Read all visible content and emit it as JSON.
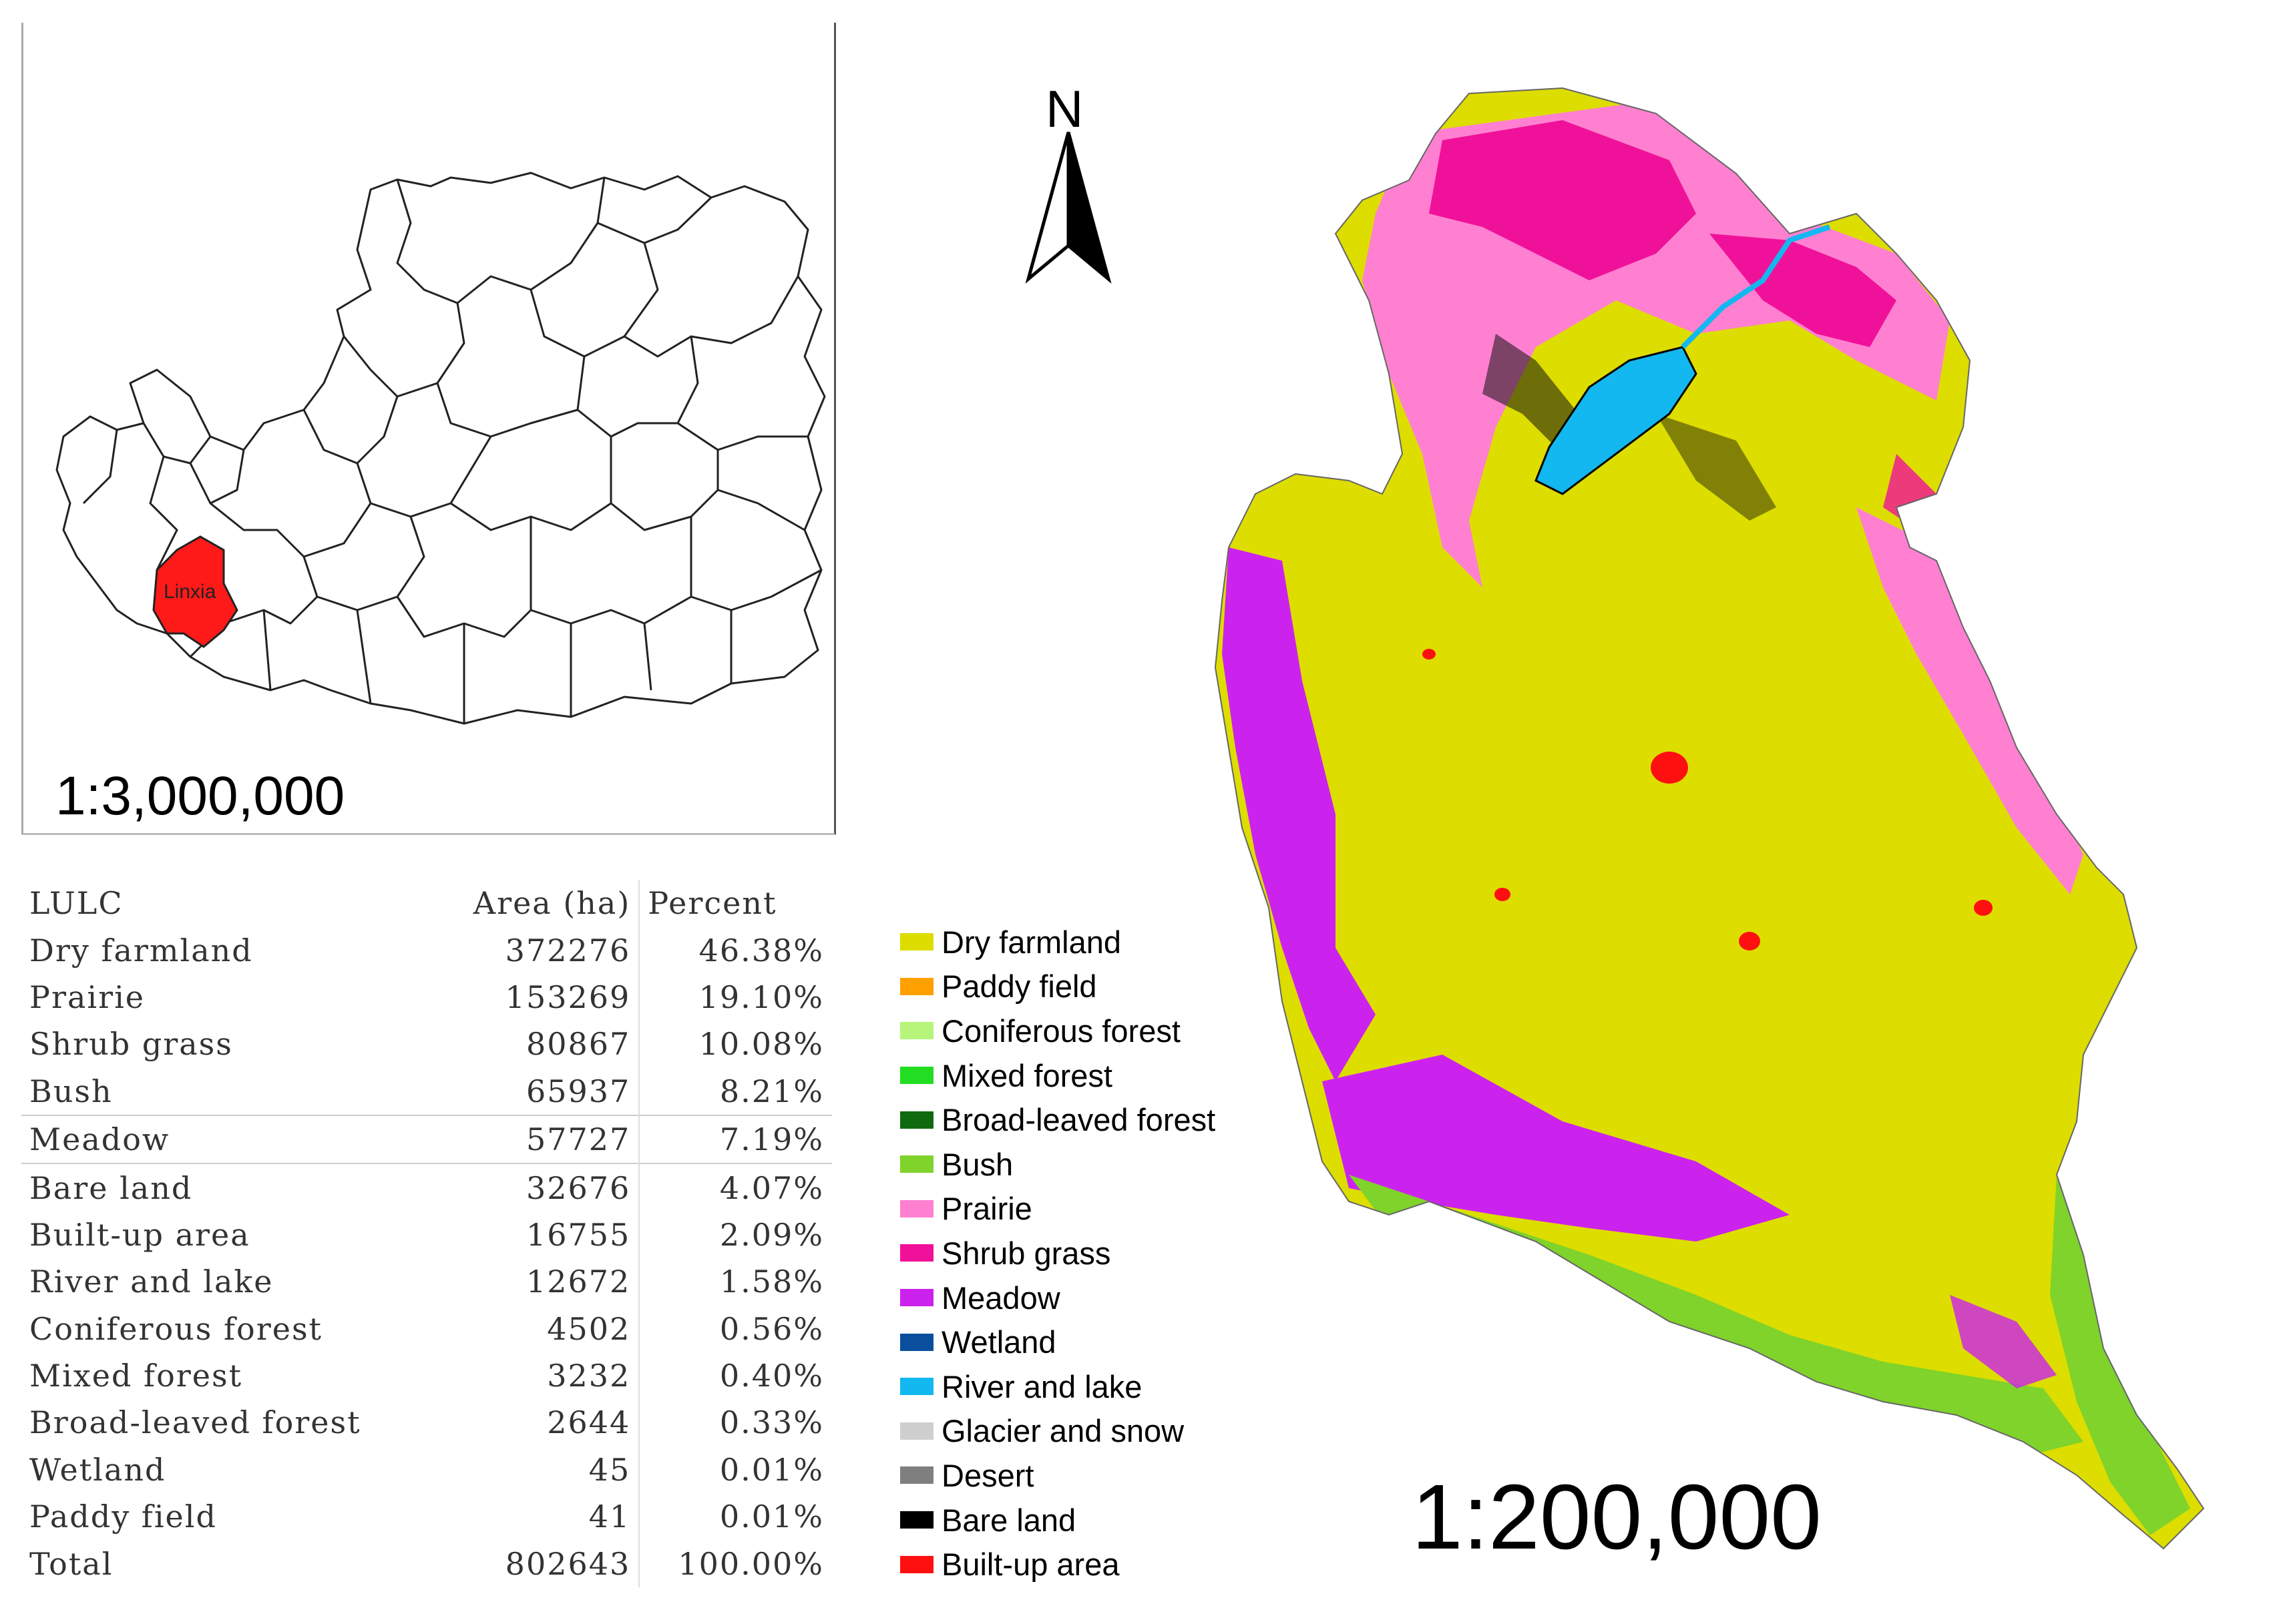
{
  "inset_map": {
    "scale": "1:3,000,000",
    "highlighted_region": "Linxia",
    "highlight_color": "#ff1a1a"
  },
  "north_arrow": {
    "label": "N"
  },
  "main_map": {
    "scale": "1:200,000"
  },
  "table": {
    "headers": [
      "LULC",
      "Area (ha)",
      "Percent"
    ],
    "rows": [
      [
        "Dry farmland",
        "372276",
        "46.38%"
      ],
      [
        "Prairie",
        "153269",
        "19.10%"
      ],
      [
        "Shrub grass",
        "80867",
        "10.08%"
      ],
      [
        "Bush",
        "65937",
        "8.21%"
      ],
      [
        "Meadow",
        "57727",
        "7.19%"
      ],
      [
        "Bare land",
        "32676",
        "4.07%"
      ],
      [
        "Built-up area",
        "16755",
        "2.09%"
      ],
      [
        "River and lake",
        "12672",
        "1.58%"
      ],
      [
        "Coniferous forest",
        "4502",
        "0.56%"
      ],
      [
        "Mixed forest",
        "3232",
        "0.40%"
      ],
      [
        "Broad-leaved forest",
        "2644",
        "0.33%"
      ],
      [
        "Wetland",
        "45",
        "0.01%"
      ],
      [
        "Paddy field",
        "41",
        "0.01%"
      ],
      [
        "Total",
        "802643",
        "100.00%"
      ]
    ]
  },
  "legend": [
    {
      "label": "Dry farmland",
      "color": "#dddd00"
    },
    {
      "label": "Paddy field",
      "color": "#ff9f00"
    },
    {
      "label": "Coniferous forest",
      "color": "#b6f57a"
    },
    {
      "label": "Mixed forest",
      "color": "#22dd22"
    },
    {
      "label": "Broad-leaved forest",
      "color": "#0f6a0f"
    },
    {
      "label": "Bush",
      "color": "#7fd32a"
    },
    {
      "label": "Prairie",
      "color": "#ff80d0"
    },
    {
      "label": "Shrub grass",
      "color": "#f0119a"
    },
    {
      "label": "Meadow",
      "color": "#cc22ee"
    },
    {
      "label": "Wetland",
      "color": "#0a4f9e"
    },
    {
      "label": "River and lake",
      "color": "#12b8ef"
    },
    {
      "label": "Glacier and snow",
      "color": "#cfcfcf"
    },
    {
      "label": "Desert",
      "color": "#7f7f7f"
    },
    {
      "label": "Bare land",
      "color": "#000000"
    },
    {
      "label": "Built-up area",
      "color": "#ff1010"
    }
  ]
}
